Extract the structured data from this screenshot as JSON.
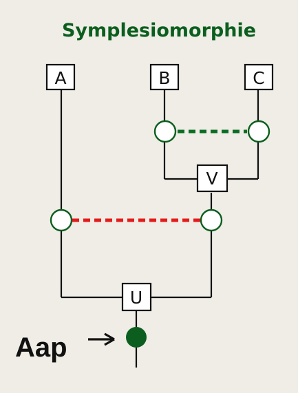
{
  "title": "Symplesiomorphie",
  "taxa": {
    "a": "A",
    "b": "B",
    "c": "C"
  },
  "nodes": {
    "v": "V",
    "u": "U"
  },
  "annotation": {
    "label": "Aap"
  },
  "colors": {
    "background": "#efede6",
    "title": "#0b5e1e",
    "line": "#111111",
    "box_fill": "#ffffff",
    "ancestral_character": "#0b5e1e",
    "green_link": "#0b6d23",
    "red_link": "#e51b1b",
    "open_state_fill": "#ffffff"
  }
}
